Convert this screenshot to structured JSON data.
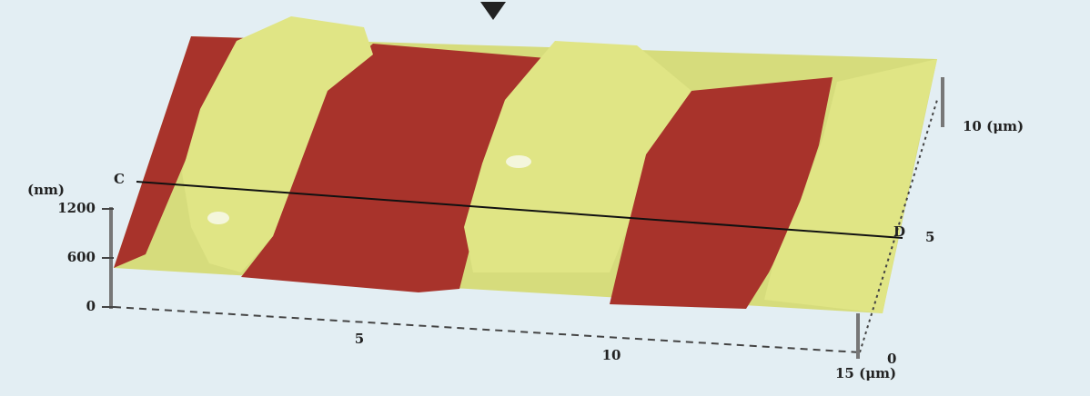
{
  "figure": {
    "z_axis": {
      "unit": "(nm)",
      "ticks": [
        "1200",
        "600",
        "0"
      ]
    },
    "x_axis": {
      "ticks": [
        "5",
        "10",
        "15 (μm)"
      ]
    },
    "y_axis": {
      "ticks": [
        "0",
        "5",
        "10 (μm)"
      ]
    },
    "profile_line": {
      "start": "C",
      "end": "D"
    }
  }
}
